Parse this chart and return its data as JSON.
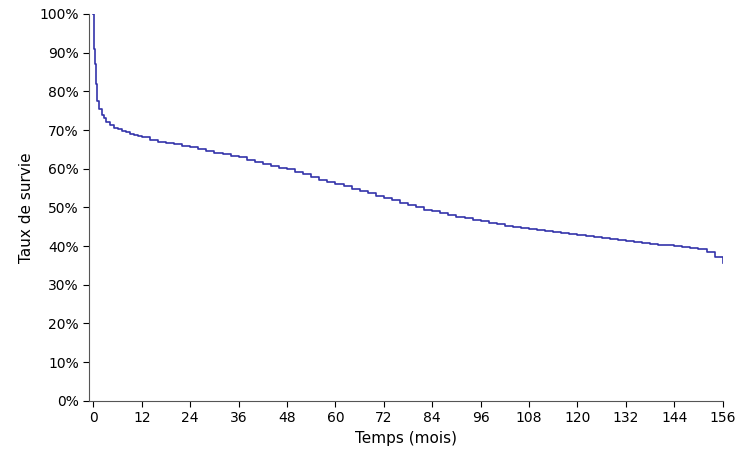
{
  "title": "",
  "xlabel": "Temps (mois)",
  "ylabel": "Taux de survie",
  "xlim": [
    -1,
    156
  ],
  "ylim": [
    0,
    1.0
  ],
  "xticks": [
    0,
    12,
    24,
    36,
    48,
    60,
    72,
    84,
    96,
    108,
    120,
    132,
    144,
    156
  ],
  "yticks": [
    0.0,
    0.1,
    0.2,
    0.3,
    0.4,
    0.5,
    0.6,
    0.7,
    0.8,
    0.9,
    1.0
  ],
  "line_color": "#3333AA",
  "line_width": 1.2,
  "background_color": "#ffffff",
  "survival_times": [
    0,
    0.25,
    0.5,
    0.75,
    1.0,
    1.5,
    2.0,
    2.5,
    3.0,
    4.0,
    5.0,
    6.0,
    7.0,
    8.0,
    9.0,
    10.0,
    11.0,
    12.0,
    14,
    16,
    18,
    20,
    22,
    24,
    26,
    28,
    30,
    32,
    34,
    36,
    38,
    40,
    42,
    44,
    46,
    48,
    50,
    52,
    54,
    56,
    58,
    60,
    62,
    64,
    66,
    68,
    70,
    72,
    74,
    76,
    78,
    80,
    82,
    84,
    86,
    88,
    90,
    92,
    94,
    96,
    98,
    100,
    102,
    104,
    106,
    108,
    110,
    112,
    114,
    116,
    118,
    120,
    122,
    124,
    126,
    128,
    130,
    132,
    134,
    136,
    138,
    140,
    142,
    144,
    146,
    148,
    150,
    152,
    154,
    156
  ],
  "survival_probs": [
    1.0,
    0.91,
    0.87,
    0.82,
    0.775,
    0.755,
    0.74,
    0.73,
    0.72,
    0.712,
    0.706,
    0.702,
    0.698,
    0.694,
    0.69,
    0.687,
    0.684,
    0.681,
    0.675,
    0.67,
    0.667,
    0.663,
    0.659,
    0.655,
    0.65,
    0.645,
    0.641,
    0.637,
    0.633,
    0.629,
    0.623,
    0.618,
    0.613,
    0.608,
    0.603,
    0.598,
    0.591,
    0.585,
    0.578,
    0.572,
    0.566,
    0.56,
    0.554,
    0.548,
    0.542,
    0.536,
    0.53,
    0.524,
    0.518,
    0.512,
    0.506,
    0.5,
    0.494,
    0.49,
    0.486,
    0.481,
    0.476,
    0.472,
    0.468,
    0.464,
    0.46,
    0.456,
    0.452,
    0.449,
    0.446,
    0.444,
    0.442,
    0.439,
    0.437,
    0.434,
    0.432,
    0.429,
    0.426,
    0.423,
    0.42,
    0.418,
    0.416,
    0.413,
    0.41,
    0.408,
    0.406,
    0.404,
    0.402,
    0.4,
    0.397,
    0.395,
    0.393,
    0.385,
    0.372,
    0.355
  ]
}
